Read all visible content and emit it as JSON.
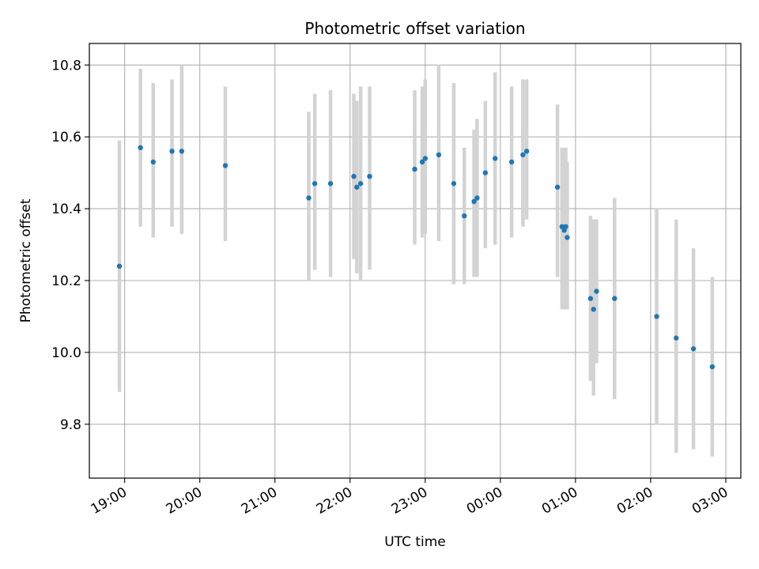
{
  "chart_data": {
    "type": "scatter",
    "title": "Photometric offset variation",
    "xlabel": "UTC time",
    "ylabel": "Photometric offset",
    "x_unit": "hours since 00:00 (negative = previous day)",
    "xlim": [
      -5.47,
      3.2
    ],
    "ylim": [
      9.65,
      10.86
    ],
    "grid": true,
    "xticks": [
      {
        "value": -5,
        "label": "19:00"
      },
      {
        "value": -4,
        "label": "20:00"
      },
      {
        "value": -3,
        "label": "21:00"
      },
      {
        "value": -2,
        "label": "22:00"
      },
      {
        "value": -1,
        "label": "23:00"
      },
      {
        "value": 0,
        "label": "00:00"
      },
      {
        "value": 1,
        "label": "01:00"
      },
      {
        "value": 2,
        "label": "02:00"
      },
      {
        "value": 3,
        "label": "03:00"
      }
    ],
    "yticks": [
      {
        "value": 9.8,
        "label": "9.8"
      },
      {
        "value": 10.0,
        "label": "10.0"
      },
      {
        "value": 10.2,
        "label": "10.2"
      },
      {
        "value": 10.4,
        "label": "10.4"
      },
      {
        "value": 10.6,
        "label": "10.6"
      },
      {
        "value": 10.8,
        "label": "10.8"
      }
    ],
    "colors": {
      "point": "#1f77b4",
      "errorbar": "#d3d3d3",
      "grid": "#b0b0b0",
      "frame": "#000000"
    },
    "series": [
      {
        "name": "offset",
        "points": [
          {
            "x": -5.07,
            "y": 10.24,
            "low": 9.89,
            "high": 10.59
          },
          {
            "x": -4.79,
            "y": 10.57,
            "low": 10.35,
            "high": 10.79
          },
          {
            "x": -4.62,
            "y": 10.53,
            "low": 10.32,
            "high": 10.75
          },
          {
            "x": -4.37,
            "y": 10.56,
            "low": 10.35,
            "high": 10.76
          },
          {
            "x": -4.24,
            "y": 10.56,
            "low": 10.33,
            "high": 10.8
          },
          {
            "x": -3.66,
            "y": 10.52,
            "low": 10.31,
            "high": 10.74
          },
          {
            "x": -2.55,
            "y": 10.43,
            "low": 10.2,
            "high": 10.67
          },
          {
            "x": -2.47,
            "y": 10.47,
            "low": 10.23,
            "high": 10.72
          },
          {
            "x": -2.26,
            "y": 10.47,
            "low": 10.21,
            "high": 10.73
          },
          {
            "x": -1.95,
            "y": 10.49,
            "low": 10.26,
            "high": 10.72
          },
          {
            "x": -1.91,
            "y": 10.46,
            "low": 10.22,
            "high": 10.7
          },
          {
            "x": -1.86,
            "y": 10.47,
            "low": 10.2,
            "high": 10.74
          },
          {
            "x": -1.74,
            "y": 10.49,
            "low": 10.23,
            "high": 10.74
          },
          {
            "x": -1.14,
            "y": 10.51,
            "low": 10.3,
            "high": 10.73
          },
          {
            "x": -1.04,
            "y": 10.53,
            "low": 10.32,
            "high": 10.74
          },
          {
            "x": -1.0,
            "y": 10.54,
            "low": 10.33,
            "high": 10.76
          },
          {
            "x": -0.82,
            "y": 10.55,
            "low": 10.31,
            "high": 10.8
          },
          {
            "x": -0.62,
            "y": 10.47,
            "low": 10.19,
            "high": 10.75
          },
          {
            "x": -0.48,
            "y": 10.38,
            "low": 10.19,
            "high": 10.57
          },
          {
            "x": -0.35,
            "y": 10.42,
            "low": 10.21,
            "high": 10.62
          },
          {
            "x": -0.31,
            "y": 10.43,
            "low": 10.21,
            "high": 10.65
          },
          {
            "x": -0.2,
            "y": 10.5,
            "low": 10.29,
            "high": 10.7
          },
          {
            "x": -0.07,
            "y": 10.54,
            "low": 10.3,
            "high": 10.78
          },
          {
            "x": 0.15,
            "y": 10.53,
            "low": 10.32,
            "high": 10.74
          },
          {
            "x": 0.3,
            "y": 10.55,
            "low": 10.35,
            "high": 10.76
          },
          {
            "x": 0.35,
            "y": 10.56,
            "low": 10.37,
            "high": 10.76
          },
          {
            "x": 0.76,
            "y": 10.46,
            "low": 10.21,
            "high": 10.69
          },
          {
            "x": 0.82,
            "y": 10.35,
            "low": 10.12,
            "high": 10.57
          },
          {
            "x": 0.85,
            "y": 10.34,
            "low": 10.12,
            "high": 10.57
          },
          {
            "x": 0.87,
            "y": 10.35,
            "low": 10.13,
            "high": 10.57
          },
          {
            "x": 0.89,
            "y": 10.32,
            "low": 10.12,
            "high": 10.53
          },
          {
            "x": 1.2,
            "y": 10.15,
            "low": 9.92,
            "high": 10.38
          },
          {
            "x": 1.24,
            "y": 10.12,
            "low": 9.88,
            "high": 10.37
          },
          {
            "x": 1.28,
            "y": 10.17,
            "low": 9.97,
            "high": 10.37
          },
          {
            "x": 1.52,
            "y": 10.15,
            "low": 9.87,
            "high": 10.43
          },
          {
            "x": 2.08,
            "y": 10.1,
            "low": 9.8,
            "high": 10.4
          },
          {
            "x": 2.34,
            "y": 10.04,
            "low": 9.72,
            "high": 10.37
          },
          {
            "x": 2.57,
            "y": 10.01,
            "low": 9.73,
            "high": 10.29
          },
          {
            "x": 2.82,
            "y": 9.96,
            "low": 9.71,
            "high": 10.21
          }
        ]
      }
    ]
  }
}
